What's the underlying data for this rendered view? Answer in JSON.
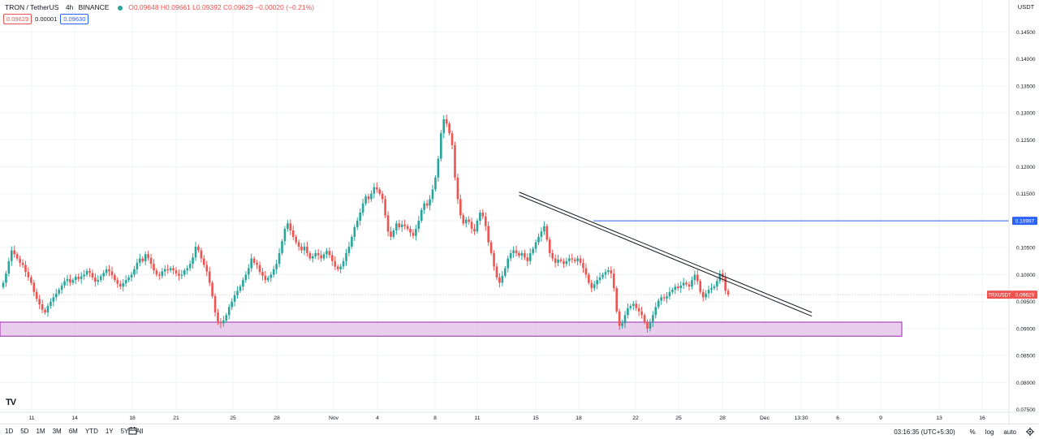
{
  "legend": {
    "symbol": "TRON / TetherUS",
    "interval": "4h",
    "exchange": "BINANCE",
    "ohlc": "O0.09648 H0.09661 L0.09392 C0.09629 −0.00020 (−0.21%)",
    "bid": "0.09629",
    "spread": "0.00001",
    "ask": "0.09630"
  },
  "axis": {
    "currency": "USDT",
    "price_ticks": [
      "0.14500",
      "0.14000",
      "0.13500",
      "0.13000",
      "0.12500",
      "0.12000",
      "0.11500",
      "0.11000",
      "0.10500",
      "0.10000",
      "0.09500",
      "0.09000",
      "0.08500",
      "0.08000",
      "0.07500"
    ],
    "date_ticks": [
      "11",
      "14",
      "18",
      "21",
      "25",
      "28",
      "Nov",
      "4",
      "8",
      "11",
      "15",
      "18",
      "22",
      "25",
      "28",
      "Dec",
      "13:30",
      "6",
      "9",
      "13",
      "16"
    ],
    "hline_label": "0.10997",
    "current_symbol": "TRXUSDT",
    "current_price": "0.09629"
  },
  "toolbar": {
    "timeframes": [
      "1D",
      "5D",
      "1M",
      "3M",
      "6M",
      "YTD",
      "1Y",
      "5Y",
      "All"
    ],
    "time": "03:16:35 (UTC+5:30)",
    "percent": "%",
    "log": "log",
    "auto": "auto"
  },
  "logo": "TV",
  "colors": {
    "up": "#26a69a",
    "down": "#ef5350",
    "hline": "#2962ff",
    "zone": "#e1bee7",
    "zone_border": "#9c27b0"
  },
  "chart_data": {
    "type": "candlestick",
    "symbol": "TRXUSDT",
    "interval": "4h",
    "ylim": [
      0.074,
      0.147
    ],
    "price_ticks": [
      0.145,
      0.14,
      0.135,
      0.13,
      0.125,
      0.12,
      0.115,
      0.11,
      0.105,
      0.1,
      0.095,
      0.09,
      0.085,
      0.08,
      0.075
    ],
    "date_ticks": [
      "11",
      "14",
      "18",
      "21",
      "25",
      "28",
      "Nov",
      "4",
      "8",
      "11",
      "15",
      "18",
      "22",
      "25",
      "28",
      "Dec",
      "13:30",
      "6",
      "9",
      "13",
      "16"
    ],
    "close": [
      0.0985,
      0.1002,
      0.1025,
      0.1045,
      0.1038,
      0.103,
      0.1022,
      0.1018,
      0.1005,
      0.0995,
      0.0985,
      0.0968,
      0.0955,
      0.0945,
      0.0935,
      0.093,
      0.0942,
      0.095,
      0.0958,
      0.0965,
      0.0972,
      0.098,
      0.0988,
      0.0992,
      0.0985,
      0.099,
      0.0996,
      0.0992,
      0.0997,
      0.1,
      0.1007,
      0.1003,
      0.0995,
      0.0987,
      0.099,
      0.0997,
      0.1003,
      0.101,
      0.1006,
      0.0999,
      0.099,
      0.0983,
      0.0978,
      0.0984,
      0.099,
      0.0995,
      0.1,
      0.101,
      0.1022,
      0.103,
      0.1025,
      0.1038,
      0.1031,
      0.102,
      0.1008,
      0.1,
      0.0998,
      0.1006,
      0.101,
      0.1008,
      0.1012,
      0.1008,
      0.1002,
      0.0998,
      0.1,
      0.1008,
      0.1012,
      0.102,
      0.1032,
      0.1052,
      0.1045,
      0.103,
      0.1018,
      0.1006,
      0.0985,
      0.096,
      0.093,
      0.0912,
      0.091,
      0.0915,
      0.0925,
      0.094,
      0.095,
      0.0962,
      0.097,
      0.0978,
      0.099,
      0.1,
      0.1012,
      0.103,
      0.1022,
      0.1018,
      0.1005,
      0.0998,
      0.099,
      0.0994,
      0.1,
      0.101,
      0.102,
      0.104,
      0.1062,
      0.1085,
      0.1095,
      0.1082,
      0.107,
      0.106,
      0.1052,
      0.1045,
      0.1052,
      0.104,
      0.103,
      0.1034,
      0.104,
      0.1036,
      0.103,
      0.1038,
      0.1044,
      0.1036,
      0.1025,
      0.1015,
      0.101,
      0.1015,
      0.1025,
      0.104,
      0.1052,
      0.107,
      0.1088,
      0.11,
      0.1115,
      0.1132,
      0.1145,
      0.114,
      0.115,
      0.1162,
      0.1158,
      0.115,
      0.114,
      0.111,
      0.108,
      0.107,
      0.1082,
      0.1095,
      0.1088,
      0.1093,
      0.109,
      0.1085,
      0.1078,
      0.1072,
      0.1085,
      0.11,
      0.112,
      0.1132,
      0.1128,
      0.114,
      0.1158,
      0.118,
      0.1215,
      0.1262,
      0.1288,
      0.128,
      0.1262,
      0.124,
      0.118,
      0.114,
      0.111,
      0.1095,
      0.1102,
      0.1098,
      0.1085,
      0.108,
      0.11,
      0.1115,
      0.1108,
      0.109,
      0.106,
      0.104,
      0.1015,
      0.0995,
      0.0985,
      0.0998,
      0.1012,
      0.103,
      0.104,
      0.1045,
      0.104,
      0.1035,
      0.104,
      0.1032,
      0.1025,
      0.104,
      0.1048,
      0.106,
      0.107,
      0.108,
      0.109,
      0.1065,
      0.104,
      0.103,
      0.1022,
      0.1028,
      0.1025,
      0.102,
      0.1025,
      0.103,
      0.1028,
      0.1025,
      0.103,
      0.1022,
      0.1012,
      0.1,
      0.0985,
      0.0975,
      0.0982,
      0.099,
      0.0995,
      0.1,
      0.1005,
      0.1008,
      0.1002,
      0.0975,
      0.0932,
      0.0905,
      0.091,
      0.0925,
      0.0938,
      0.0942,
      0.0946,
      0.0938,
      0.0932,
      0.0925,
      0.0912,
      0.09,
      0.0912,
      0.0925,
      0.094,
      0.0952,
      0.0958,
      0.0956,
      0.096,
      0.0968,
      0.0972,
      0.0978,
      0.0975,
      0.098,
      0.0985,
      0.0982,
      0.0978,
      0.099,
      0.1,
      0.0988,
      0.0968,
      0.0958,
      0.0965,
      0.0972,
      0.0975,
      0.0978,
      0.0988,
      0.1002,
      0.0995,
      0.097,
      0.0963
    ],
    "hline": 0.10997,
    "current_price": 0.09629,
    "support_zone": [
      0.0886,
      0.0912
    ],
    "trendlines": [
      {
        "from_candle": 185,
        "from_price": 0.1153,
        "to_candle": 290,
        "to_price": 0.093
      },
      {
        "from_candle": 185,
        "from_price": 0.1147,
        "to_candle": 290,
        "to_price": 0.0923
      }
    ],
    "grid": true,
    "xlabel": "",
    "ylabel": ""
  }
}
